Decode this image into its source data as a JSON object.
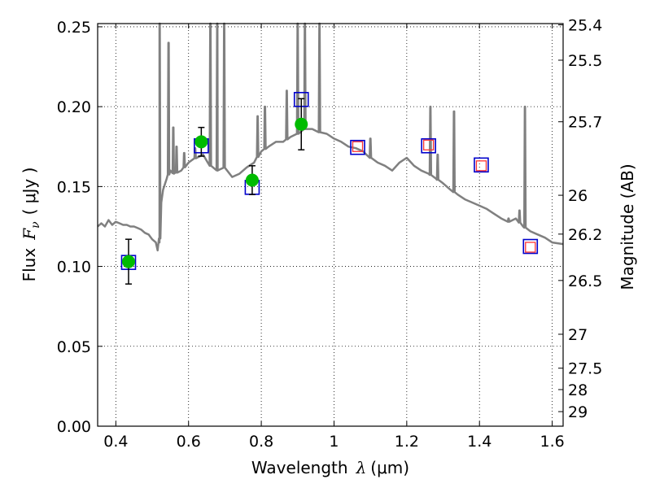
{
  "chart_data": {
    "type": "scatter",
    "xlabel": "Wavelength",
    "xlabel_symbol": "λ",
    "xlabel_unit": "(μm)",
    "ylabel": "Flux",
    "ylabel_symbol": "F",
    "ylabel_subscript": "ν",
    "ylabel_unit": "( μJy )",
    "y2label": "Magnitude (AB)",
    "xlim": [
      0.35,
      1.63
    ],
    "ylim": [
      0.0,
      0.252
    ],
    "x_ticks": [
      0.4,
      0.6,
      0.8,
      1.0,
      1.2,
      1.4,
      1.6
    ],
    "x_tick_labels": [
      "0.4",
      "0.6",
      "0.8",
      "1",
      "1.2",
      "1.4",
      "1.6"
    ],
    "y_ticks": [
      0.0,
      0.05,
      0.1,
      0.15,
      0.2,
      0.25
    ],
    "y_tick_labels": [
      "0.00",
      "0.05",
      "0.10",
      "0.15",
      "0.20",
      "0.25"
    ],
    "y2_tick_labels": [
      "25.4",
      "25.5",
      "25.7",
      "26",
      "26.2",
      "26.5",
      "27",
      "27.5",
      "28",
      "29"
    ],
    "grid": true,
    "grid_style": "dotted",
    "observed": {
      "color": "#00bb00",
      "points": [
        {
          "x": 0.435,
          "y": 0.103,
          "err": 0.014
        },
        {
          "x": 0.635,
          "y": 0.178,
          "err": 0.009
        },
        {
          "x": 0.775,
          "y": 0.154,
          "err": 0.009
        },
        {
          "x": 0.91,
          "y": 0.189,
          "err": 0.016
        }
      ]
    },
    "model_photometry": {
      "color": "#0000cc",
      "points": [
        {
          "x": 0.435,
          "y": 0.1025
        },
        {
          "x": 0.635,
          "y": 0.1755
        },
        {
          "x": 0.775,
          "y": 0.1495
        },
        {
          "x": 0.91,
          "y": 0.2045
        },
        {
          "x": 1.065,
          "y": 0.1745
        },
        {
          "x": 1.26,
          "y": 0.1755
        },
        {
          "x": 1.405,
          "y": 0.1635
        },
        {
          "x": 1.54,
          "y": 0.1125
        }
      ]
    },
    "predicted": {
      "color": "#ff3333",
      "points": [
        {
          "x": 1.065,
          "y": 0.175
        },
        {
          "x": 1.26,
          "y": 0.176
        },
        {
          "x": 1.405,
          "y": 0.163
        },
        {
          "x": 1.54,
          "y": 0.112
        }
      ]
    },
    "spectrum": {
      "color": "#808080",
      "x": [
        0.35,
        0.36,
        0.37,
        0.38,
        0.39,
        0.4,
        0.41,
        0.42,
        0.43,
        0.44,
        0.45,
        0.46,
        0.47,
        0.48,
        0.49,
        0.5,
        0.51,
        0.515,
        0.52,
        0.525,
        0.53,
        0.54,
        0.55,
        0.56,
        0.58,
        0.6,
        0.62,
        0.64,
        0.66,
        0.68,
        0.7,
        0.72,
        0.74,
        0.76,
        0.78,
        0.8,
        0.82,
        0.84,
        0.86,
        0.88,
        0.9,
        0.92,
        0.94,
        0.96,
        0.98,
        1.0,
        1.02,
        1.04,
        1.06,
        1.08,
        1.1,
        1.12,
        1.14,
        1.16,
        1.18,
        1.2,
        1.22,
        1.24,
        1.26,
        1.28,
        1.3,
        1.32,
        1.34,
        1.36,
        1.38,
        1.4,
        1.42,
        1.44,
        1.46,
        1.48,
        1.5,
        1.52,
        1.54,
        1.56,
        1.58,
        1.6,
        1.63
      ],
      "y": [
        0.125,
        0.127,
        0.125,
        0.129,
        0.126,
        0.128,
        0.127,
        0.126,
        0.126,
        0.125,
        0.125,
        0.124,
        0.123,
        0.121,
        0.12,
        0.117,
        0.115,
        0.11,
        0.115,
        0.14,
        0.148,
        0.155,
        0.16,
        0.158,
        0.16,
        0.165,
        0.168,
        0.17,
        0.163,
        0.16,
        0.162,
        0.156,
        0.158,
        0.162,
        0.165,
        0.172,
        0.175,
        0.178,
        0.178,
        0.181,
        0.183,
        0.186,
        0.186,
        0.184,
        0.183,
        0.18,
        0.178,
        0.175,
        0.174,
        0.172,
        0.168,
        0.165,
        0.163,
        0.16,
        0.165,
        0.168,
        0.163,
        0.16,
        0.158,
        0.155,
        0.152,
        0.148,
        0.145,
        0.142,
        0.14,
        0.138,
        0.136,
        0.133,
        0.13,
        0.128,
        0.13,
        0.125,
        0.122,
        0.12,
        0.118,
        0.115,
        0.114
      ],
      "emission_lines": [
        {
          "x": 0.5205,
          "peak": 0.252
        },
        {
          "x": 0.545,
          "peak": 0.24
        },
        {
          "x": 0.558,
          "peak": 0.187
        },
        {
          "x": 0.567,
          "peak": 0.175
        },
        {
          "x": 0.588,
          "peak": 0.171
        },
        {
          "x": 0.618,
          "peak": 0.174
        },
        {
          "x": 0.66,
          "peak": 0.252
        },
        {
          "x": 0.679,
          "peak": 0.252
        },
        {
          "x": 0.698,
          "peak": 0.252
        },
        {
          "x": 0.79,
          "peak": 0.194
        },
        {
          "x": 0.81,
          "peak": 0.2
        },
        {
          "x": 0.87,
          "peak": 0.21
        },
        {
          "x": 0.9,
          "peak": 0.252
        },
        {
          "x": 0.92,
          "peak": 0.252
        },
        {
          "x": 0.96,
          "peak": 0.252
        },
        {
          "x": 1.1,
          "peak": 0.18
        },
        {
          "x": 1.265,
          "peak": 0.2
        },
        {
          "x": 1.285,
          "peak": 0.17
        },
        {
          "x": 1.33,
          "peak": 0.197
        },
        {
          "x": 1.48,
          "peak": 0.13
        },
        {
          "x": 1.51,
          "peak": 0.135
        },
        {
          "x": 1.525,
          "peak": 0.2
        }
      ]
    }
  }
}
